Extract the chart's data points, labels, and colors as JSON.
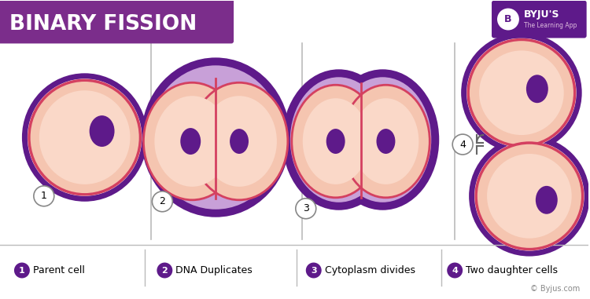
{
  "title": "BINARY FISSION",
  "title_bg": "#7B2D8B",
  "title_text_color": "#FFFFFF",
  "bg_color": "#FFFFFF",
  "cell_fill": "#F5C5B0",
  "cell_fill_light": "#FAD8C8",
  "cell_border_red": "#D44060",
  "cell_border_purple": "#5E1A8A",
  "nucleus_fill": "#5E1A8A",
  "purple_outer": "#5E1A8A",
  "purple_mid": "#C8A0D8",
  "legend_items": [
    {
      "num": "1",
      "label": "Parent cell"
    },
    {
      "num": "2",
      "label": "DNA Duplicates"
    },
    {
      "num": "3",
      "label": "Cytoplasm divides"
    },
    {
      "num": "4",
      "label": "Two daughter cells"
    }
  ],
  "copyright": "© Byjus.com",
  "separator_color": "#BBBBBB"
}
